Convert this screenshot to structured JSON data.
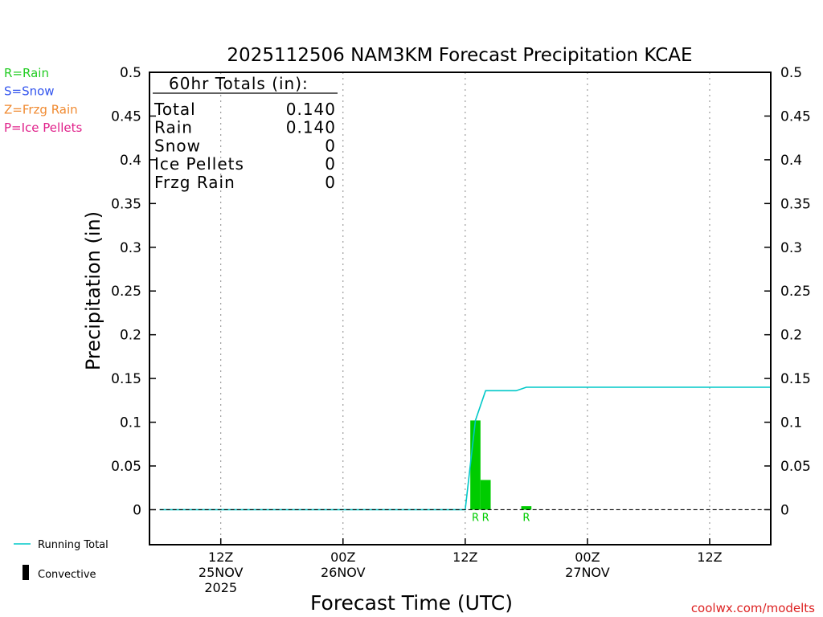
{
  "chart_data": {
    "type": "bar",
    "title": "2025112506 NAM3KM Forecast Precipitation KCAE",
    "xlabel": "Forecast Time (UTC)",
    "ylabel": "Precipitation (in)",
    "ylim": [
      -0.04,
      0.5
    ],
    "yticks": [
      "0",
      "0.05",
      "0.1",
      "0.15",
      "0.2",
      "0.25",
      "0.3",
      "0.35",
      "0.4",
      "0.45",
      "0.5"
    ],
    "xlim_hours_from_start": [
      -1,
      60
    ],
    "x_ticks": [
      {
        "hour": 6,
        "lines": [
          "12Z",
          "25NOV",
          "2025"
        ]
      },
      {
        "hour": 18,
        "lines": [
          "00Z",
          "26NOV"
        ]
      },
      {
        "hour": 30,
        "lines": [
          "12Z"
        ]
      },
      {
        "hour": 42,
        "lines": [
          "00Z",
          "27NOV"
        ]
      },
      {
        "hour": 54,
        "lines": [
          "12Z"
        ]
      }
    ],
    "series": [
      {
        "name": "Rain",
        "kind": "bar",
        "color": "#00cc00",
        "points": [
          {
            "hour": 31,
            "value": 0.102,
            "label": "R"
          },
          {
            "hour": 32,
            "value": 0.034,
            "label": "R"
          },
          {
            "hour": 36,
            "value": 0.004,
            "label": "R"
          }
        ]
      },
      {
        "name": "Running Total",
        "kind": "line",
        "color": "#00c8c8",
        "points": [
          [
            0,
            0
          ],
          [
            30,
            0
          ],
          [
            31,
            0.102
          ],
          [
            32,
            0.136
          ],
          [
            35,
            0.136
          ],
          [
            36,
            0.14
          ],
          [
            60,
            0.14
          ]
        ]
      }
    ],
    "zero_line": {
      "style": "dashed",
      "color": "#000000"
    },
    "grid": "vertical dotted at x ticks",
    "totals_box": {
      "heading": "60hr Totals (in):",
      "rows": [
        {
          "label": "Total",
          "value": "0.140"
        },
        {
          "label": "Rain",
          "value": "0.140"
        },
        {
          "label": "Snow",
          "value": "0"
        },
        {
          "label": "Ice Pellets",
          "value": "0"
        },
        {
          "label": "Frzg Rain",
          "value": "0"
        }
      ]
    }
  },
  "type_legend": [
    {
      "text": "R=Rain",
      "color": "#22cc22"
    },
    {
      "text": "S=Snow",
      "color": "#3355ee"
    },
    {
      "text": "Z=Frzg Rain",
      "color": "#f08a30"
    },
    {
      "text": "P=Ice Pellets",
      "color": "#e0208a"
    }
  ],
  "bottom_legend": {
    "running_total": "Running Total",
    "convective": "Convective"
  },
  "credit": "coolwx.com/modelts"
}
